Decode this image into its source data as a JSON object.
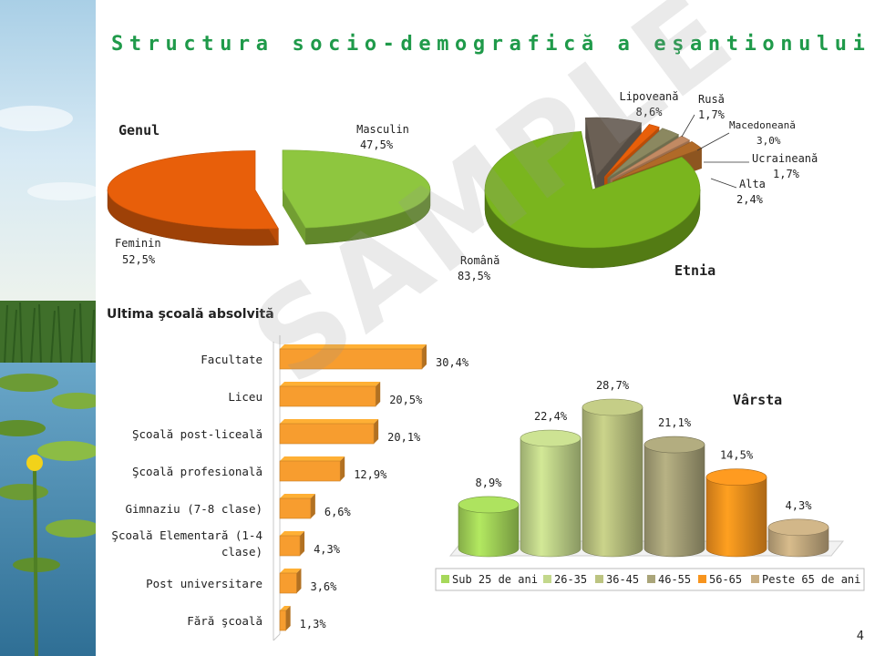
{
  "slide": {
    "title": "Structura socio-demografică a eşantionului",
    "page_number": "4",
    "watermark": "SAMPLE"
  },
  "colors": {
    "title": "#1f9a4a",
    "green": "#7ab51e",
    "orange": "#e85f0a",
    "bar_orange": "#f79d2f",
    "lipoveana": "#6b6055",
    "rusa": "#e85f0a",
    "macedoneana": "#8b8860",
    "ucraineana": "#c28a63",
    "alta": "#b06a28",
    "age_sub25": "#a6d85a",
    "age_26_35": "#c3d88c",
    "age_36_45": "#bcc481",
    "age_46_55": "#aaa57a",
    "age_56_65": "#f7941e",
    "age_65plus": "#c8ae82"
  },
  "chart_data": [
    {
      "id": "genul",
      "type": "pie",
      "title": "Genul",
      "slices": [
        {
          "label": "Masculin",
          "value": 47.5,
          "display": "47,5%",
          "color": "#8ec63f"
        },
        {
          "label": "Feminin",
          "value": 52.5,
          "display": "52,5%",
          "color": "#e85f0a"
        }
      ]
    },
    {
      "id": "etnia",
      "type": "pie",
      "title": "Etnia",
      "slices": [
        {
          "label": "Română",
          "value": 83.5,
          "display": "83,5%",
          "color": "#7ab51e"
        },
        {
          "label": "Lipoveană",
          "value": 8.6,
          "display": "8,6%",
          "color": "#6b6055"
        },
        {
          "label": "Rusă",
          "value": 1.7,
          "display": "1,7%",
          "color": "#e85f0a"
        },
        {
          "label": "Macedoneană",
          "value": 3.0,
          "display": "3,0%",
          "color": "#8b8860"
        },
        {
          "label": "Ucraineană",
          "value": 1.7,
          "display": "1,7%",
          "color": "#c28a63"
        },
        {
          "label": "Alta",
          "value": 2.4,
          "display": "2,4%",
          "color": "#b06a28"
        }
      ]
    },
    {
      "id": "scoala",
      "type": "bar",
      "orientation": "horizontal",
      "title": "Ultima şcoală absolvită",
      "categories": [
        "Facultate",
        "Liceu",
        "Şcoală post-liceală",
        "Şcoală profesională",
        "Gimnaziu (7-8 clase)",
        "Şcoală Elementară (1-4 clase)",
        "Post universitare",
        "Fără şcoală"
      ],
      "category_lines": [
        [
          "Facultate"
        ],
        [
          "Liceu"
        ],
        [
          "Şcoală post-liceală"
        ],
        [
          "Şcoală profesională"
        ],
        [
          "Gimnaziu (7-8 clase)"
        ],
        [
          "Şcoală Elementară (1-4",
          "clase)"
        ],
        [
          "Post universitare"
        ],
        [
          "Fără şcoală"
        ]
      ],
      "values": [
        30.4,
        20.5,
        20.1,
        12.9,
        6.6,
        4.3,
        3.6,
        1.3
      ],
      "value_labels": [
        "30,4%",
        "20,5%",
        "20,1%",
        "12,9%",
        "6,6%",
        "4,3%",
        "3,6%",
        "1,3%"
      ],
      "xlim": [
        0,
        32
      ],
      "grid": false
    },
    {
      "id": "varsta",
      "type": "bar",
      "orientation": "vertical",
      "title": "Vârsta",
      "categories": [
        "Sub 25 de ani",
        "26-35",
        "36-45",
        "46-55",
        "56-65",
        "Peste 65 de ani"
      ],
      "values": [
        8.9,
        22.4,
        28.7,
        21.1,
        14.5,
        4.3
      ],
      "value_labels": [
        "8,9%",
        "22,4%",
        "28,7%",
        "21,1%",
        "14,5%",
        "4,3%"
      ],
      "colors": [
        "#a6d85a",
        "#c3d88c",
        "#bcc481",
        "#aaa57a",
        "#f7941e",
        "#c8ae82"
      ],
      "ylim": [
        0,
        30
      ],
      "legend_position": "bottom"
    }
  ]
}
